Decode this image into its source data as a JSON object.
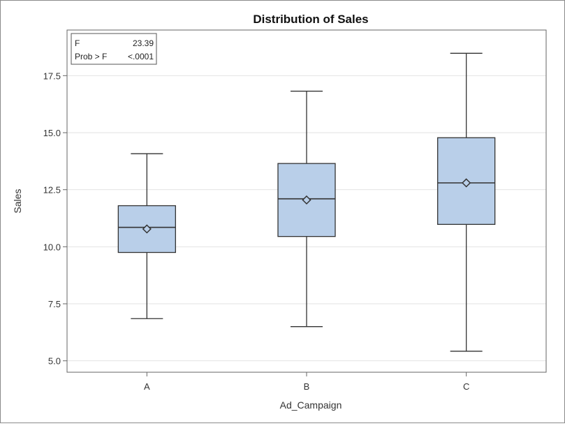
{
  "chart_data": {
    "type": "box",
    "title": "Distribution of Sales",
    "xlabel": "Ad_Campaign",
    "ylabel": "Sales",
    "categories": [
      "A",
      "B",
      "C"
    ],
    "ylim": [
      4.5,
      19.5
    ],
    "yticks": [
      5.0,
      7.5,
      10.0,
      12.5,
      15.0,
      17.5
    ],
    "ytick_labels": [
      "5.0",
      "7.5",
      "10.0",
      "12.5",
      "15.0",
      "17.5"
    ],
    "grid": "horizontal",
    "boxes": [
      {
        "category": "A",
        "min": 6.85,
        "q1": 9.75,
        "median": 10.85,
        "q3": 11.8,
        "max": 14.08,
        "mean": 10.78
      },
      {
        "category": "B",
        "min": 6.5,
        "q1": 10.45,
        "median": 12.1,
        "q3": 13.65,
        "max": 16.82,
        "mean": 12.05
      },
      {
        "category": "C",
        "min": 5.42,
        "q1": 10.98,
        "median": 12.8,
        "q3": 14.78,
        "max": 18.48,
        "mean": 12.8
      }
    ],
    "colors": {
      "box_fill": "#b9cfe9",
      "box_stroke": "#333333",
      "grid": "#e2e2e2",
      "axis": "#666666"
    },
    "stats_inset": {
      "position": "top-left",
      "rows": [
        {
          "label": "F",
          "value": "23.39"
        },
        {
          "label": "Prob > F",
          "value": "<.0001"
        }
      ]
    }
  }
}
